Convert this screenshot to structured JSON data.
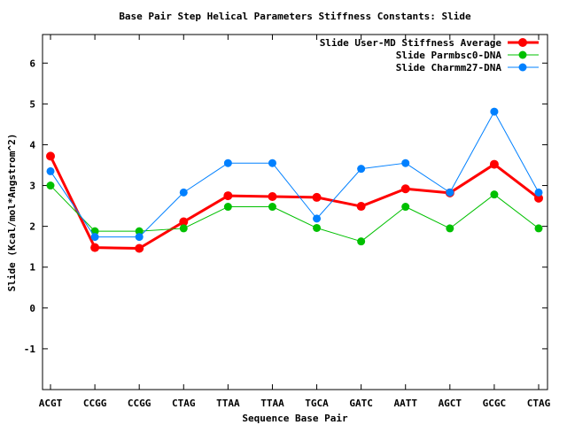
{
  "chart_data": {
    "type": "line",
    "title": "Base Pair Step Helical Parameters Stiffness Constants: Slide",
    "xlabel": "Sequence Base Pair",
    "ylabel": "Slide (Kcal/mol*Angstrom^2)",
    "categories": [
      "ACGT",
      "CCGG",
      "CCGG",
      "CTAG",
      "TTAA",
      "TTAA",
      "TGCA",
      "GATC",
      "AATT",
      "AGCT",
      "GCGC",
      "CTAG"
    ],
    "ylim": [
      -2,
      6.7
    ],
    "yticks": [
      "-1",
      "0",
      "1",
      "2",
      "3",
      "4",
      "5",
      "6"
    ],
    "grid": false,
    "legend_position": "top-right",
    "series": [
      {
        "name": "Slide User-MD Stiffness Average",
        "color": "#ff0000",
        "values": [
          3.72,
          1.48,
          1.46,
          2.11,
          2.75,
          2.73,
          2.71,
          2.49,
          2.92,
          2.82,
          3.52,
          2.69
        ]
      },
      {
        "name": "Slide Parmbsc0-DNA",
        "color": "#00c000",
        "values": [
          3.0,
          1.88,
          1.88,
          1.95,
          2.48,
          2.48,
          1.96,
          1.63,
          2.48,
          1.95,
          2.78,
          1.95
        ]
      },
      {
        "name": "Slide Charmm27-DNA",
        "color": "#0080ff",
        "values": [
          3.35,
          1.74,
          1.74,
          2.83,
          3.55,
          3.55,
          2.19,
          3.41,
          3.55,
          2.83,
          4.81,
          2.83
        ]
      }
    ]
  }
}
